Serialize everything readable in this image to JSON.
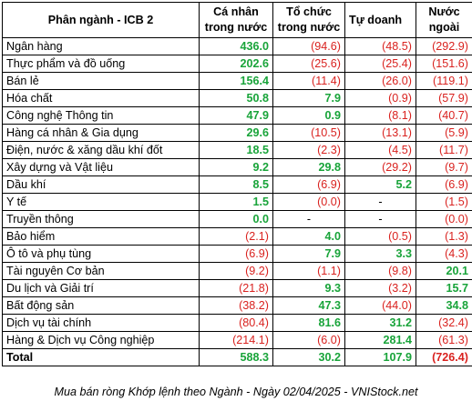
{
  "headers": {
    "sector": "Phân ngành - ICB 2",
    "individual": "Cá nhân trong nước",
    "institution": "Tổ chức trong nước",
    "proprietary": "Tự doanh",
    "foreign": "Nước ngoài"
  },
  "rows": [
    {
      "sector": "Ngân hàng",
      "individual": "436.0",
      "institution": "(94.6)",
      "proprietary": "(48.5)",
      "foreign": "(292.9)"
    },
    {
      "sector": "Thực phẩm và đồ uống",
      "individual": "202.6",
      "institution": "(25.6)",
      "proprietary": "(25.4)",
      "foreign": "(151.6)"
    },
    {
      "sector": "Bán lẻ",
      "individual": "156.4",
      "institution": "(11.4)",
      "proprietary": "(26.0)",
      "foreign": "(119.1)"
    },
    {
      "sector": "Hóa chất",
      "individual": "50.8",
      "institution": "7.9",
      "proprietary": "(0.9)",
      "foreign": "(57.9)"
    },
    {
      "sector": "Công nghệ Thông tin",
      "individual": "47.9",
      "institution": "0.9",
      "proprietary": "(8.1)",
      "foreign": "(40.7)"
    },
    {
      "sector": "Hàng cá nhân & Gia dụng",
      "individual": "29.6",
      "institution": "(10.5)",
      "proprietary": "(13.1)",
      "foreign": "(5.9)"
    },
    {
      "sector": "Điện, nước & xăng dầu khí đốt",
      "individual": "18.5",
      "institution": "(2.3)",
      "proprietary": "(4.5)",
      "foreign": "(11.7)"
    },
    {
      "sector": "Xây dựng và Vật liệu",
      "individual": "9.2",
      "institution": "29.8",
      "proprietary": "(29.2)",
      "foreign": "(9.7)"
    },
    {
      "sector": "Dầu khí",
      "individual": "8.5",
      "institution": "(6.9)",
      "proprietary": "5.2",
      "foreign": "(6.9)"
    },
    {
      "sector": "Y tế",
      "individual": "1.5",
      "institution": "(0.0)",
      "proprietary": "-",
      "foreign": "(1.5)"
    },
    {
      "sector": "Truyền thông",
      "individual": "0.0",
      "institution": "-",
      "proprietary": "-",
      "foreign": "(0.0)"
    },
    {
      "sector": "Bảo hiểm",
      "individual": "(2.1)",
      "institution": "4.0",
      "proprietary": "(0.5)",
      "foreign": "(1.3)"
    },
    {
      "sector": "Ô tô và phụ tùng",
      "individual": "(6.9)",
      "institution": "7.9",
      "proprietary": "3.3",
      "foreign": "(4.3)"
    },
    {
      "sector": "Tài nguyên Cơ bản",
      "individual": "(9.2)",
      "institution": "(1.1)",
      "proprietary": "(9.8)",
      "foreign": "20.1"
    },
    {
      "sector": "Du lịch và Giải trí",
      "individual": "(21.8)",
      "institution": "9.3",
      "proprietary": "(3.2)",
      "foreign": "15.7"
    },
    {
      "sector": "Bất động sản",
      "individual": "(38.2)",
      "institution": "47.3",
      "proprietary": "(44.0)",
      "foreign": "34.8"
    },
    {
      "sector": "Dịch vụ tài chính",
      "individual": "(80.4)",
      "institution": "81.6",
      "proprietary": "31.2",
      "foreign": "(32.4)"
    },
    {
      "sector": "Hàng & Dịch vụ Công nghiệp",
      "individual": "(214.1)",
      "institution": "(6.0)",
      "proprietary": "281.4",
      "foreign": "(61.3)"
    }
  ],
  "total": {
    "sector": "Total",
    "individual": "588.3",
    "institution": "30.2",
    "proprietary": "107.9",
    "foreign": "(726.4)"
  },
  "caption": "Mua bán ròng Khớp lệnh theo Ngành - Ngày 02/04/2025 - VNIStock.net",
  "colors": {
    "positive": "#19a43a",
    "negative": "#d9221f",
    "border": "#000000"
  }
}
